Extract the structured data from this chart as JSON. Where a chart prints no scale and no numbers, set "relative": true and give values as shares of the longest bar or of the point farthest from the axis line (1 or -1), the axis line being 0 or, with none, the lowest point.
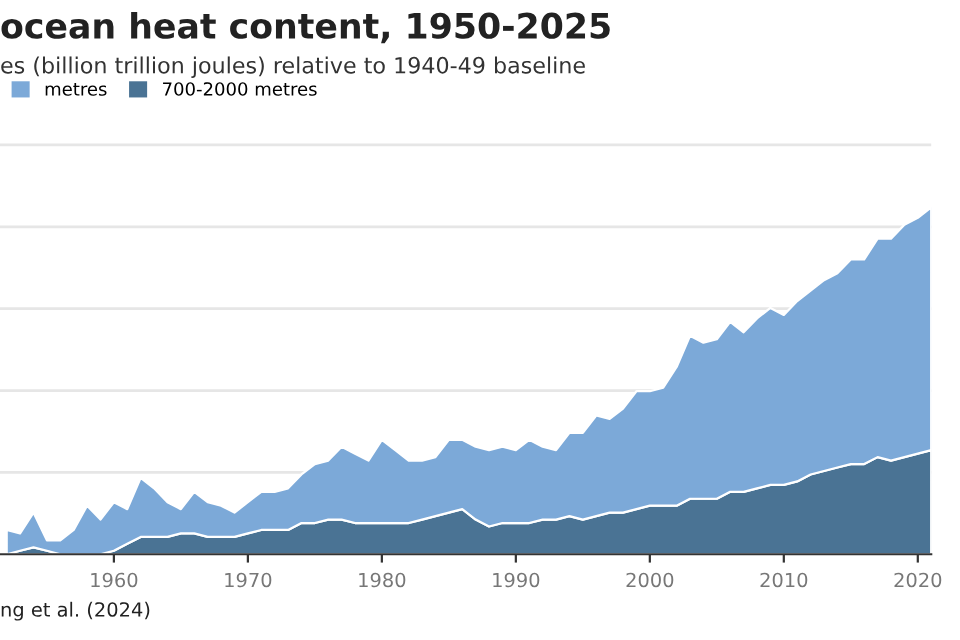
{
  "chart_data": {
    "type": "area",
    "stacked": true,
    "relative": true,
    "title": "ocean heat content, 1950-2025",
    "subtitle": "es (billion trillion joules) relative to 1940-49 baseline",
    "annotations": [
      "ng et al. (2024)"
    ],
    "x": [
      1952,
      1953,
      1954,
      1955,
      1956,
      1957,
      1958,
      1959,
      1960,
      1961,
      1962,
      1963,
      1964,
      1965,
      1966,
      1967,
      1968,
      1969,
      1970,
      1971,
      1972,
      1973,
      1974,
      1975,
      1976,
      1977,
      1978,
      1979,
      1980,
      1981,
      1982,
      1983,
      1984,
      1985,
      1986,
      1987,
      1988,
      1989,
      1990,
      1991,
      1992,
      1993,
      1994,
      1995,
      1996,
      1997,
      1998,
      1999,
      2000,
      2001,
      2002,
      2003,
      2004,
      2005,
      2006,
      2007,
      2008,
      2009,
      2010,
      2011,
      2012,
      2013,
      2014,
      2015,
      2016,
      2017,
      2018,
      2019,
      2020,
      2021
    ],
    "xlim": [
      1951.5,
      2021
    ],
    "xticks": [
      1960,
      1970,
      1980,
      1990,
      2000,
      2010,
      2020
    ],
    "series": [
      {
        "name": "700-2000 metres",
        "color": "#4a7394",
        "values": [
          0,
          0.01,
          0.02,
          0.01,
          0,
          0,
          0,
          0,
          0.01,
          0.03,
          0.05,
          0.05,
          0.05,
          0.06,
          0.06,
          0.05,
          0.05,
          0.05,
          0.06,
          0.07,
          0.07,
          0.07,
          0.09,
          0.09,
          0.1,
          0.1,
          0.09,
          0.09,
          0.09,
          0.09,
          0.09,
          0.1,
          0.11,
          0.12,
          0.13,
          0.1,
          0.08,
          0.09,
          0.09,
          0.09,
          0.1,
          0.1,
          0.11,
          0.1,
          0.11,
          0.12,
          0.12,
          0.13,
          0.14,
          0.14,
          0.14,
          0.16,
          0.16,
          0.16,
          0.18,
          0.18,
          0.19,
          0.2,
          0.2,
          0.21,
          0.23,
          0.24,
          0.25,
          0.26,
          0.26,
          0.28,
          0.27,
          0.28,
          0.29,
          0.3
        ]
      },
      {
        "name": "metres",
        "color": "#7ca9d8",
        "values": [
          0.07,
          0.05,
          0.1,
          0.03,
          0.04,
          0.07,
          0.14,
          0.1,
          0.14,
          0.1,
          0.17,
          0.14,
          0.1,
          0.07,
          0.12,
          0.1,
          0.09,
          0.07,
          0.09,
          0.11,
          0.11,
          0.12,
          0.14,
          0.17,
          0.17,
          0.21,
          0.2,
          0.18,
          0.24,
          0.21,
          0.18,
          0.17,
          0.17,
          0.21,
          0.2,
          0.21,
          0.22,
          0.22,
          0.21,
          0.24,
          0.21,
          0.2,
          0.24,
          0.25,
          0.29,
          0.27,
          0.3,
          0.34,
          0.33,
          0.34,
          0.4,
          0.47,
          0.45,
          0.46,
          0.49,
          0.46,
          0.49,
          0.51,
          0.49,
          0.52,
          0.53,
          0.55,
          0.56,
          0.59,
          0.59,
          0.63,
          0.64,
          0.67,
          0.68,
          0.7
        ]
      }
    ],
    "grid": "y",
    "legend": "top left"
  }
}
